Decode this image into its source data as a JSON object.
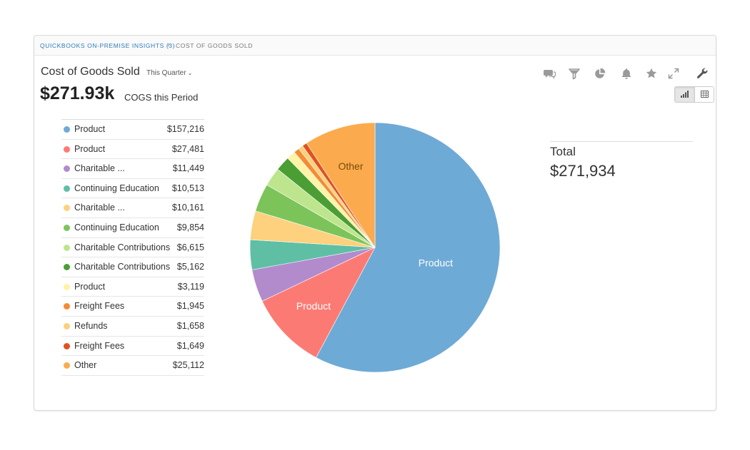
{
  "breadcrumb": {
    "link": "QUICKBOOKS ON-PREMISE INSIGHTS (3)",
    "separator": "›",
    "current": "COST OF GOODS SOLD"
  },
  "header": {
    "title": "Cost of Goods Sold",
    "period": "This Quarter",
    "big_value": "$271.93k",
    "big_caption": "COGS this Period"
  },
  "toolbar": {
    "icons": [
      "comments-icon",
      "filter-icon",
      "pie-chart-icon",
      "bell-icon",
      "star-icon",
      "expand-icon",
      "wrench-icon"
    ]
  },
  "view_toggle": {
    "options": [
      "bar-chart-icon",
      "table-icon"
    ],
    "active": "bar-chart-icon"
  },
  "total": {
    "label": "Total",
    "value": "$271,934"
  },
  "legend": [
    {
      "label": "Product",
      "value": "$157,216",
      "color": "#6eaad6"
    },
    {
      "label": "Product",
      "value": "$27,481",
      "color": "#fb7b74"
    },
    {
      "label": "Charitable ...",
      "value": "$11,449",
      "color": "#b28bcd"
    },
    {
      "label": "Continuing Education",
      "value": "$10,513",
      "color": "#5ebfa5"
    },
    {
      "label": "Charitable ...",
      "value": "$10,161",
      "color": "#fdd17d"
    },
    {
      "label": "Continuing Education",
      "value": "$9,854",
      "color": "#7cc45a"
    },
    {
      "label": "Charitable Contributions",
      "value": "$6,615",
      "color": "#bde58e"
    },
    {
      "label": "Charitable Contributions",
      "value": "$5,162",
      "color": "#4b9e34"
    },
    {
      "label": "Product",
      "value": "$3,119",
      "color": "#fef3a6"
    },
    {
      "label": "Freight Fees",
      "value": "$1,945",
      "color": "#f58c35"
    },
    {
      "label": "Refunds",
      "value": "$1,658",
      "color": "#fcd07c"
    },
    {
      "label": "Freight Fees",
      "value": "$1,649",
      "color": "#e0531f"
    },
    {
      "label": "Other",
      "value": "$25,112",
      "color": "#fbab4e"
    }
  ],
  "chart_data": {
    "type": "pie",
    "labels": [
      "Product",
      "Product",
      "Charitable ...",
      "Continuing Education",
      "Charitable ...",
      "Continuing Education",
      "Charitable Contributions",
      "Charitable Contributions",
      "Product",
      "Freight Fees",
      "Refunds",
      "Freight Fees",
      "Other"
    ],
    "values": [
      157216,
      27481,
      11449,
      10513,
      10161,
      9854,
      6615,
      5162,
      3119,
      1945,
      1658,
      1649,
      25112
    ],
    "colors": [
      "#6eaad6",
      "#fb7b74",
      "#b28bcd",
      "#5ebfa5",
      "#fdd17d",
      "#7cc45a",
      "#bde58e",
      "#4b9e34",
      "#fef3a6",
      "#f58c35",
      "#fcd07c",
      "#e0531f",
      "#fbab4e"
    ],
    "slice_labels": [
      "Product",
      "Product",
      "",
      "",
      "",
      "",
      "",
      "",
      "",
      "",
      "",
      "",
      "Other"
    ],
    "start": "12 o'clock",
    "direction": "clockwise"
  }
}
